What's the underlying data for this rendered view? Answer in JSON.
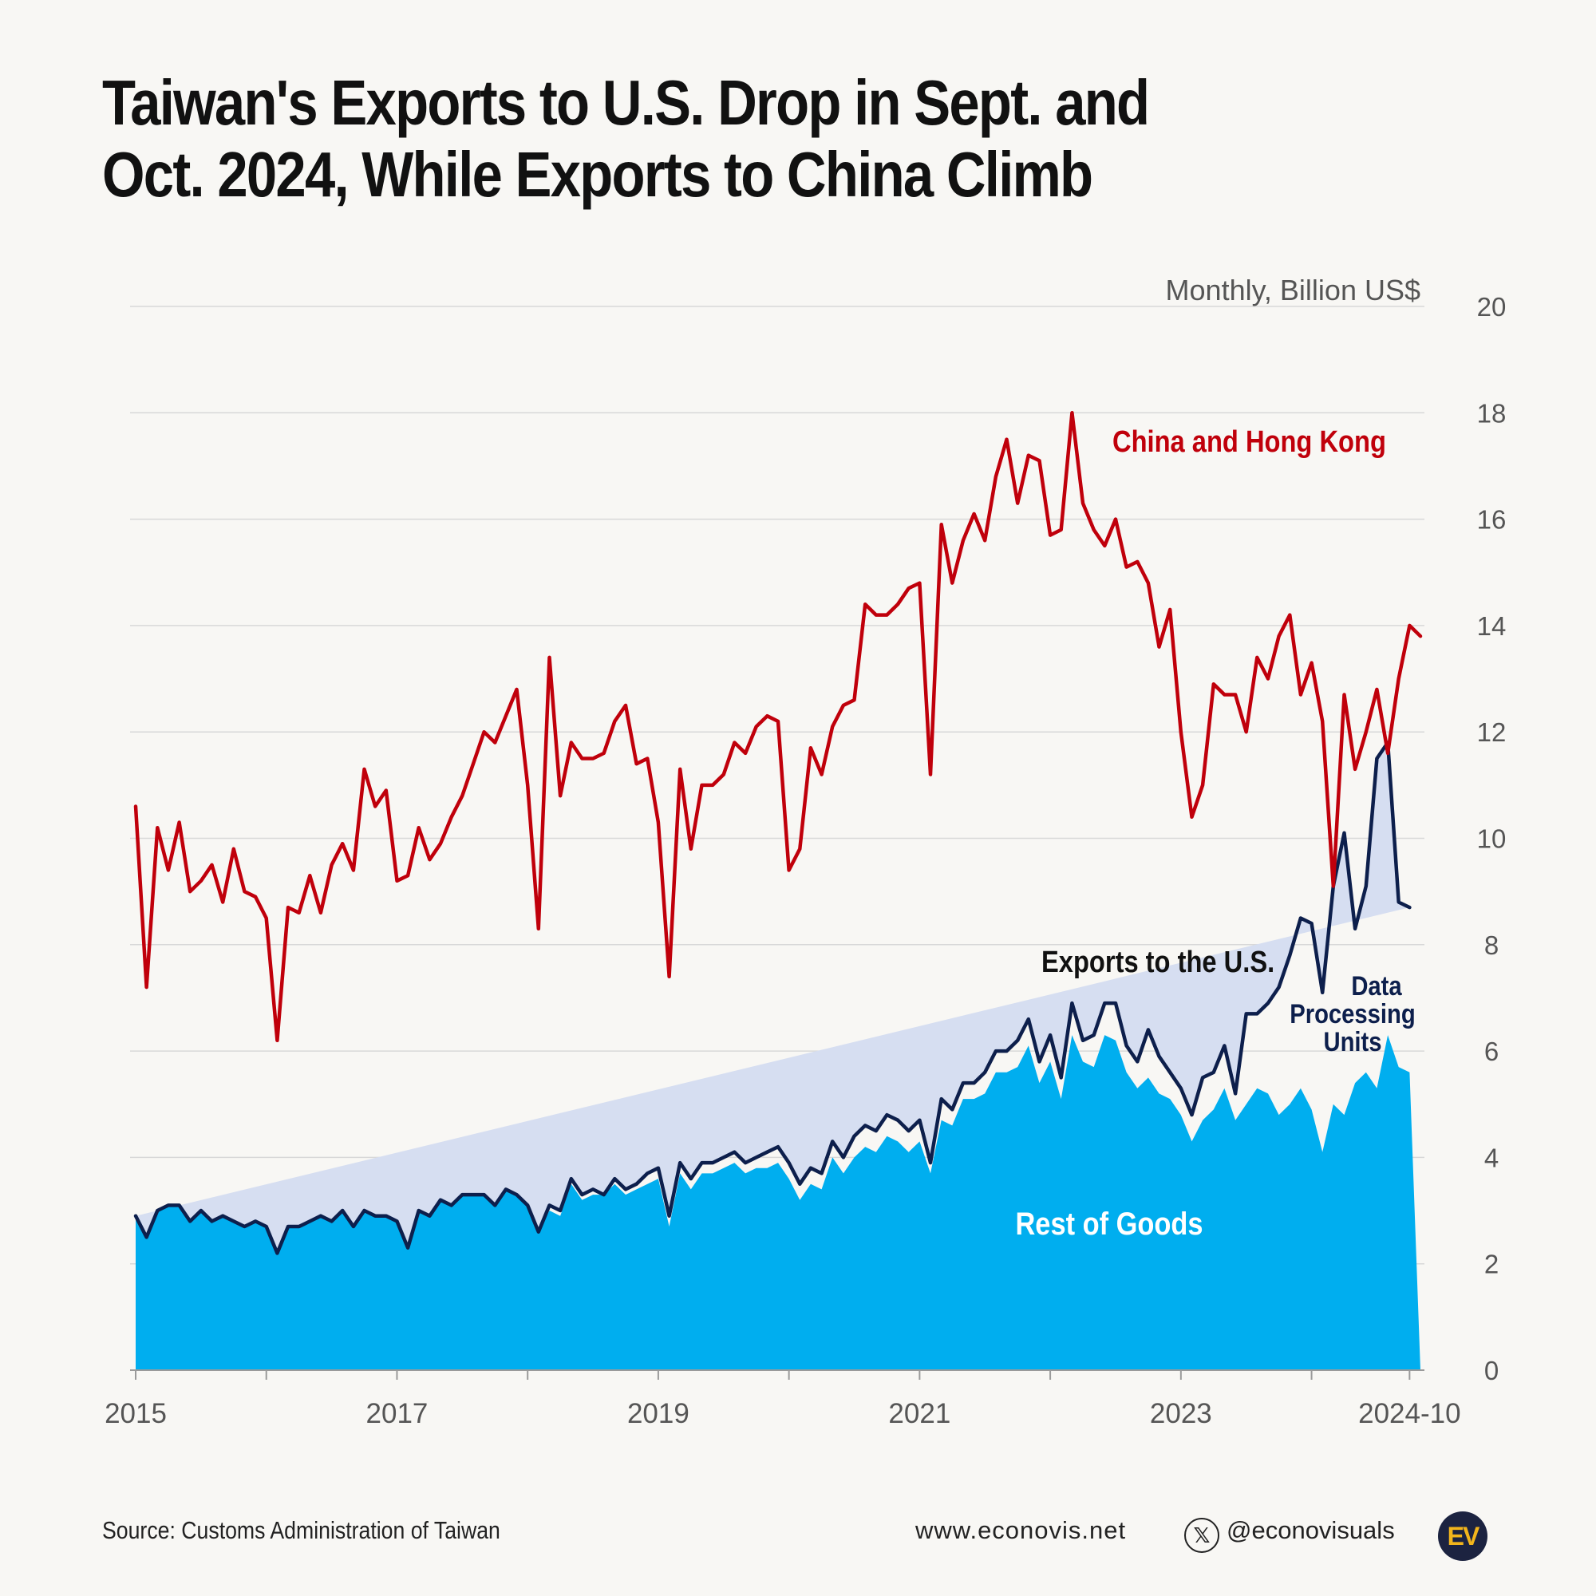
{
  "title_line1": "Taiwan's Exports to U.S. Drop in Sept. and",
  "title_line2": "Oct. 2024, While Exports to China Climb",
  "footer": {
    "source": "Source: Customs Administration of Taiwan",
    "website": "www.econovis.net",
    "x_icon": "x-logo-icon",
    "handle": "@econovisuals",
    "logo_text": "EV"
  },
  "colors": {
    "china": "#c0000b",
    "us": "#0d1f4c",
    "rest_of_goods": "#00aeef",
    "data_processing": "#d6def1",
    "grid": "#d8d8d8",
    "axis_text": "#555555"
  },
  "chart_data": {
    "type": "line",
    "unit_label": "Monthly, Billion US$",
    "ylim": [
      0,
      20
    ],
    "yticks": [
      0,
      2,
      4,
      6,
      8,
      10,
      12,
      14,
      16,
      18,
      20
    ],
    "x_start": "2015-01",
    "x_end": "2024-10",
    "xtick_labels": [
      {
        "month_index": 0,
        "label": "2015"
      },
      {
        "month_index": 24,
        "label": "2017"
      },
      {
        "month_index": 48,
        "label": "2019"
      },
      {
        "month_index": 72,
        "label": "2021"
      },
      {
        "month_index": 96,
        "label": "2023"
      },
      {
        "month_index": 117,
        "label": "2024-10"
      }
    ],
    "minor_tick_month_indices": [
      12,
      36,
      60,
      84,
      108
    ],
    "annotations": {
      "china": "China and Hong Kong",
      "us": "Exports to the U.S.",
      "data_processing": [
        "Data",
        "Processing",
        "Units"
      ],
      "rest": "Rest of Goods"
    },
    "series": [
      {
        "name": "China and Hong Kong",
        "values": [
          10.6,
          7.2,
          10.2,
          9.4,
          10.3,
          9.0,
          9.2,
          9.5,
          8.8,
          9.8,
          9.0,
          8.9,
          8.5,
          6.2,
          8.7,
          8.6,
          9.3,
          8.6,
          9.5,
          9.9,
          9.4,
          11.3,
          10.6,
          10.9,
          9.2,
          9.3,
          10.2,
          9.6,
          9.9,
          10.4,
          10.8,
          11.4,
          12.0,
          11.8,
          12.3,
          12.8,
          11.0,
          8.3,
          13.4,
          10.8,
          11.8,
          11.5,
          11.5,
          11.6,
          12.2,
          12.5,
          11.4,
          11.5,
          10.3,
          7.4,
          11.3,
          9.8,
          11.0,
          11.0,
          11.2,
          11.8,
          11.6,
          12.1,
          12.3,
          12.2,
          9.4,
          9.8,
          11.7,
          11.2,
          12.1,
          12.5,
          12.6,
          14.4,
          14.2,
          14.2,
          14.4,
          14.7,
          14.8,
          11.2,
          15.9,
          14.8,
          15.6,
          16.1,
          15.6,
          16.8,
          17.5,
          16.3,
          17.2,
          17.1,
          15.7,
          15.8,
          18.0,
          16.3,
          15.8,
          15.5,
          16.0,
          15.1,
          15.2,
          14.8,
          13.6,
          14.3,
          12.0,
          10.4,
          11.0,
          12.9,
          12.7,
          12.7,
          12.0,
          13.4,
          13.0,
          13.8,
          14.2,
          12.7,
          13.3,
          12.2,
          9.1,
          12.7,
          11.3,
          12.0,
          12.8,
          11.6,
          13.0,
          14.0,
          13.8
        ]
      },
      {
        "name": "Exports to the U.S.",
        "values": [
          2.9,
          2.5,
          3.0,
          3.1,
          3.1,
          2.8,
          3.0,
          2.8,
          2.9,
          2.8,
          2.7,
          2.8,
          2.7,
          2.2,
          2.7,
          2.7,
          2.8,
          2.9,
          2.8,
          3.0,
          2.7,
          3.0,
          2.9,
          2.9,
          2.8,
          2.3,
          3.0,
          2.9,
          3.2,
          3.1,
          3.3,
          3.3,
          3.3,
          3.1,
          3.4,
          3.3,
          3.1,
          2.6,
          3.1,
          3.0,
          3.6,
          3.3,
          3.4,
          3.3,
          3.6,
          3.4,
          3.5,
          3.7,
          3.8,
          2.9,
          3.9,
          3.6,
          3.9,
          3.9,
          4.0,
          4.1,
          3.9,
          4.0,
          4.1,
          4.2,
          3.9,
          3.5,
          3.8,
          3.7,
          4.3,
          4.0,
          4.4,
          4.6,
          4.5,
          4.8,
          4.7,
          4.5,
          4.7,
          3.9,
          5.1,
          4.9,
          5.4,
          5.4,
          5.6,
          6.0,
          6.0,
          6.2,
          6.6,
          5.8,
          6.3,
          5.5,
          6.9,
          6.2,
          6.3,
          6.9,
          6.9,
          6.1,
          5.8,
          6.4,
          5.9,
          5.6,
          5.3,
          4.8,
          5.5,
          5.6,
          6.1,
          5.2,
          6.7,
          6.7,
          6.9,
          7.2,
          7.8,
          8.5,
          8.4,
          7.1,
          9.1,
          10.1,
          8.3,
          9.1,
          11.5,
          11.8,
          8.8,
          8.7
        ]
      },
      {
        "name": "Rest of Goods",
        "values": [
          2.9,
          2.5,
          3.0,
          3.1,
          3.1,
          2.8,
          3.0,
          2.8,
          2.9,
          2.8,
          2.7,
          2.8,
          2.7,
          2.2,
          2.7,
          2.7,
          2.8,
          2.9,
          2.8,
          3.0,
          2.7,
          3.0,
          2.9,
          2.9,
          2.8,
          2.3,
          3.0,
          2.9,
          3.2,
          3.1,
          3.3,
          3.3,
          3.3,
          3.1,
          3.4,
          3.3,
          3.1,
          2.6,
          3.0,
          2.9,
          3.5,
          3.2,
          3.3,
          3.3,
          3.5,
          3.3,
          3.4,
          3.5,
          3.6,
          2.7,
          3.7,
          3.4,
          3.7,
          3.7,
          3.8,
          3.9,
          3.7,
          3.8,
          3.8,
          3.9,
          3.6,
          3.2,
          3.5,
          3.4,
          4.0,
          3.7,
          4.0,
          4.2,
          4.1,
          4.4,
          4.3,
          4.1,
          4.3,
          3.7,
          4.7,
          4.6,
          5.1,
          5.1,
          5.2,
          5.6,
          5.6,
          5.7,
          6.1,
          5.4,
          5.8,
          5.1,
          6.3,
          5.8,
          5.7,
          6.3,
          6.2,
          5.6,
          5.3,
          5.5,
          5.2,
          5.1,
          4.8,
          4.3,
          4.7,
          4.9,
          5.3,
          4.7,
          5.0,
          5.3,
          5.2,
          4.8,
          5.0,
          5.3,
          4.9,
          4.1,
          5.0,
          4.8,
          5.4,
          5.6,
          5.3,
          6.3,
          5.7,
          5.6
        ]
      }
    ]
  }
}
